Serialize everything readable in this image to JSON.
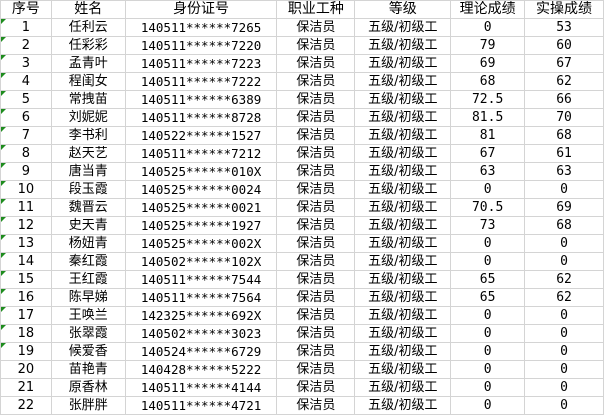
{
  "colors": {
    "gridline": "#d4d4d4",
    "error_indicator": "#1e8c1e"
  },
  "headers": [
    "序号",
    "姓名",
    "身份证号",
    "职业工种",
    "等级",
    "理论成绩",
    "实操成绩"
  ],
  "rows": [
    {
      "no": "1",
      "name": "任利云",
      "id": "140511******7265",
      "job": "保洁员",
      "level": "五级/初级工",
      "theory": "0",
      "practice": "53",
      "flag": true
    },
    {
      "no": "2",
      "name": "任彩彩",
      "id": "140511******7220",
      "job": "保洁员",
      "level": "五级/初级工",
      "theory": "79",
      "practice": "60",
      "flag": true
    },
    {
      "no": "3",
      "name": "孟青叶",
      "id": "140511******7223",
      "job": "保洁员",
      "level": "五级/初级工",
      "theory": "69",
      "practice": "67",
      "flag": true
    },
    {
      "no": "4",
      "name": "程闺女",
      "id": "140511******7222",
      "job": "保洁员",
      "level": "五级/初级工",
      "theory": "68",
      "practice": "62",
      "flag": true
    },
    {
      "no": "5",
      "name": "常拽苗",
      "id": "140511******6389",
      "job": "保洁员",
      "level": "五级/初级工",
      "theory": "72.5",
      "practice": "66",
      "flag": true
    },
    {
      "no": "6",
      "name": "刘妮妮",
      "id": "140511******8728",
      "job": "保洁员",
      "level": "五级/初级工",
      "theory": "81.5",
      "practice": "70",
      "flag": true
    },
    {
      "no": "7",
      "name": "李书利",
      "id": "140522******1527",
      "job": "保洁员",
      "level": "五级/初级工",
      "theory": "81",
      "practice": "68",
      "flag": true
    },
    {
      "no": "8",
      "name": "赵天艺",
      "id": "140511******7212",
      "job": "保洁员",
      "level": "五级/初级工",
      "theory": "67",
      "practice": "61",
      "flag": true
    },
    {
      "no": "9",
      "name": "唐当青",
      "id": "140525******010X",
      "job": "保洁员",
      "level": "五级/初级工",
      "theory": "63",
      "practice": "63",
      "flag": true
    },
    {
      "no": "10",
      "name": "段玉霞",
      "id": "140525******0024",
      "job": "保洁员",
      "level": "五级/初级工",
      "theory": "0",
      "practice": "0",
      "flag": true
    },
    {
      "no": "11",
      "name": "魏晋云",
      "id": "140525******0021",
      "job": "保洁员",
      "level": "五级/初级工",
      "theory": "70.5",
      "practice": "69",
      "flag": true
    },
    {
      "no": "12",
      "name": "史天青",
      "id": "140525******1927",
      "job": "保洁员",
      "level": "五级/初级工",
      "theory": "73",
      "practice": "68",
      "flag": true
    },
    {
      "no": "13",
      "name": "杨妞青",
      "id": "140525******002X",
      "job": "保洁员",
      "level": "五级/初级工",
      "theory": "0",
      "practice": "0",
      "flag": true
    },
    {
      "no": "14",
      "name": "秦红霞",
      "id": "140502******102X",
      "job": "保洁员",
      "level": "五级/初级工",
      "theory": "0",
      "practice": "0",
      "flag": true
    },
    {
      "no": "15",
      "name": "王红霞",
      "id": "140511******7544",
      "job": "保洁员",
      "level": "五级/初级工",
      "theory": "65",
      "practice": "62",
      "flag": true
    },
    {
      "no": "16",
      "name": "陈早娣",
      "id": "140511******7564",
      "job": "保洁员",
      "level": "五级/初级工",
      "theory": "65",
      "practice": "62",
      "flag": true
    },
    {
      "no": "17",
      "name": "王唤兰",
      "id": "142325******692X",
      "job": "保洁员",
      "level": "五级/初级工",
      "theory": "0",
      "practice": "0",
      "flag": true
    },
    {
      "no": "18",
      "name": "张翠霞",
      "id": "140502******3023",
      "job": "保洁员",
      "level": "五级/初级工",
      "theory": "0",
      "practice": "0",
      "flag": true
    },
    {
      "no": "19",
      "name": "候爱香",
      "id": "140524******6729",
      "job": "保洁员",
      "level": "五级/初级工",
      "theory": "0",
      "practice": "0",
      "flag": true
    },
    {
      "no": "20",
      "name": "苗艳青",
      "id": "140428******5222",
      "job": "保洁员",
      "level": "五级/初级工",
      "theory": "0",
      "practice": "0",
      "flag": false
    },
    {
      "no": "21",
      "name": "原香林",
      "id": "140511******4144",
      "job": "保洁员",
      "level": "五级/初级工",
      "theory": "0",
      "practice": "0",
      "flag": false
    },
    {
      "no": "22",
      "name": "张胖胖",
      "id": "140511******4721",
      "job": "保洁员",
      "level": "五级/初级工",
      "theory": "0",
      "practice": "0",
      "flag": false
    }
  ]
}
